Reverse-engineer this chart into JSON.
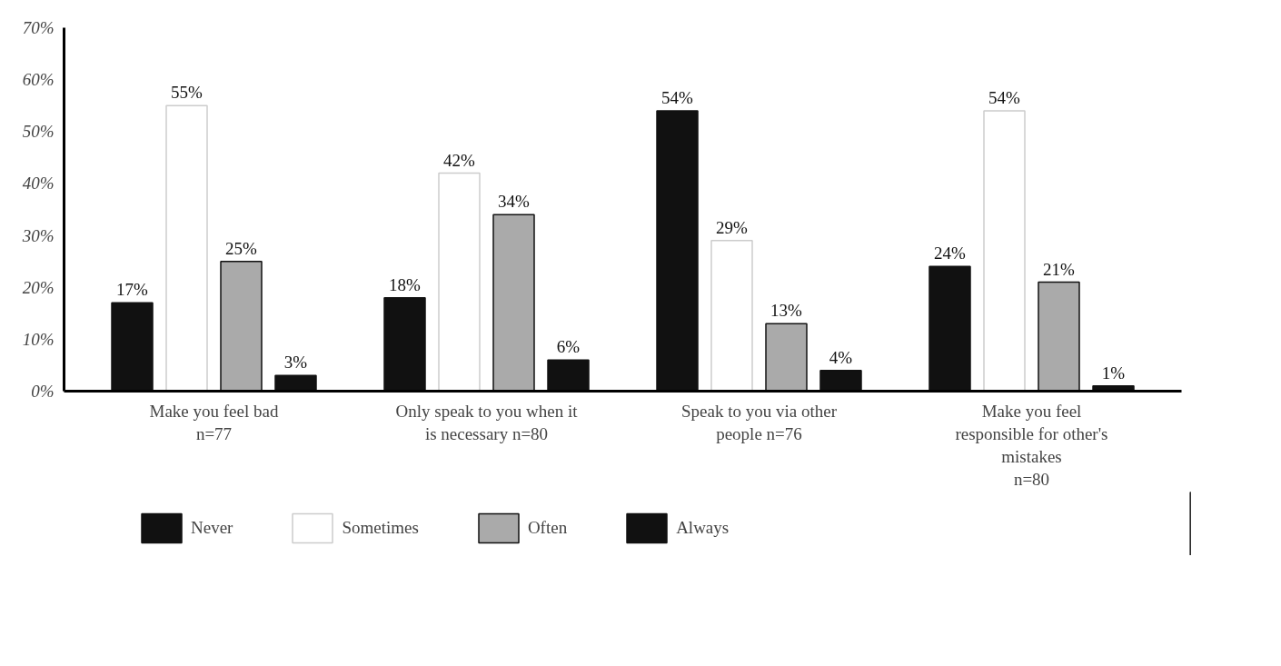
{
  "chart_data": {
    "type": "bar",
    "categories": [
      "Make you feel bad\nn=77",
      "Only speak to you when it\nis necessary n=80",
      "Speak to you via other\npeople n=76",
      "Make you feel\nresponsible for other's\nmistakes\nn=80"
    ],
    "series": [
      {
        "name": "Never",
        "color": "#111111",
        "values": [
          17,
          18,
          54,
          24
        ],
        "value_labels": [
          "17%",
          "18%",
          "54%",
          "24%"
        ]
      },
      {
        "name": "Sometimes",
        "color": "#ffffff",
        "values": [
          55,
          42,
          29,
          54
        ],
        "value_labels": [
          "55%",
          "42%",
          "29%",
          "54%"
        ]
      },
      {
        "name": "Often",
        "color": "#aaaaaa",
        "values": [
          25,
          34,
          13,
          21
        ],
        "value_labels": [
          "25%",
          "34%",
          "13%",
          "21%"
        ]
      },
      {
        "name": "Always",
        "color": "#111111",
        "values": [
          3,
          6,
          4,
          1
        ],
        "value_labels": [
          "3%",
          "6%",
          "4%",
          "1%"
        ]
      }
    ],
    "ylim": [
      0,
      70
    ],
    "yticks": [
      {
        "value": 0,
        "label": "0%"
      },
      {
        "value": 10,
        "label": "10%"
      },
      {
        "value": 20,
        "label": "20%"
      },
      {
        "value": 30,
        "label": "30%"
      },
      {
        "value": 40,
        "label": "40%"
      },
      {
        "value": 50,
        "label": "50%"
      },
      {
        "value": 60,
        "label": "60%"
      },
      {
        "value": 70,
        "label": "70%"
      }
    ],
    "grid": false,
    "legend": "bottom"
  }
}
